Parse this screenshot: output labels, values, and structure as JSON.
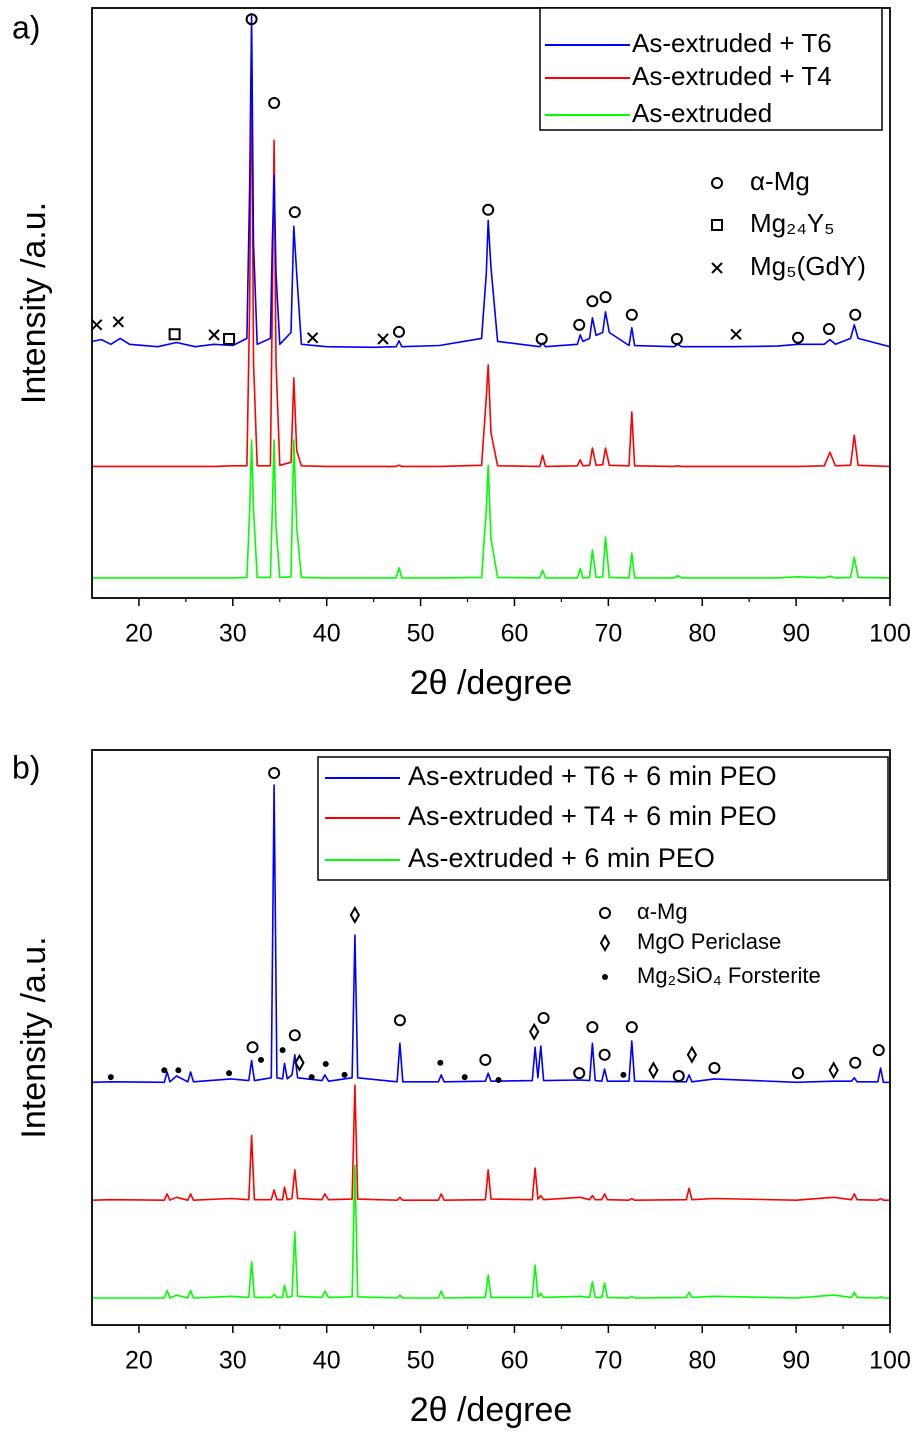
{
  "chart_data": [
    {
      "type": "line",
      "panel_label": "a)",
      "x_label": "2θ /degree",
      "y_label": "Intensity /a.u.",
      "xlim": [
        15,
        100
      ],
      "xticks": [
        20,
        30,
        40,
        50,
        60,
        70,
        80,
        90,
        100
      ],
      "ylim": [
        0,
        100
      ],
      "x": [
        15,
        16,
        17,
        18,
        19,
        22,
        24,
        26,
        28,
        30,
        31.5,
        31.8,
        32,
        32.2,
        32.6,
        34,
        34.2,
        34.4,
        34.6,
        35,
        36.2,
        36.5,
        36.8,
        37.3,
        40,
        45,
        47.4,
        47.7,
        48,
        52,
        56.5,
        57.0,
        57.2,
        57.5,
        58.2,
        62.7,
        63,
        63.3,
        66.7,
        67,
        67.3,
        68,
        68.3,
        68.7,
        69.4,
        69.7,
        70.1,
        72.2,
        72.5,
        72.8,
        77,
        77.4,
        77.8,
        83,
        88,
        90.2,
        93,
        93.6,
        94.2,
        95.8,
        96.2,
        96.6,
        100
      ],
      "series": [
        {
          "name": "As-extruded + T6",
          "color": "#0000ff",
          "values": [
            43.5,
            43.8,
            43,
            44,
            43,
            42.6,
            43.3,
            42.6,
            43,
            42.8,
            44,
            70,
            99,
            60,
            43,
            44,
            60,
            71.7,
            55,
            43,
            45,
            63,
            55,
            43,
            42.6,
            42.5,
            42.6,
            43.6,
            42.6,
            42.8,
            44,
            55,
            64,
            56,
            43.5,
            42.6,
            43.2,
            42.6,
            43,
            44.6,
            43.5,
            44,
            47.5,
            44.5,
            45,
            48.5,
            45,
            42.8,
            45.8,
            42.8,
            42.6,
            43,
            42.6,
            42.6,
            42.7,
            43,
            43,
            43.8,
            43,
            44,
            46.3,
            44,
            42.6
          ]
        },
        {
          "name": "As-extruded + T4",
          "color": "#ff0000",
          "values": [
            22.3,
            22.3,
            22.3,
            22.3,
            22.3,
            22.3,
            22.3,
            22.3,
            22.3,
            22.4,
            22.4,
            50,
            95,
            40,
            22.4,
            22.4,
            50,
            77.6,
            40,
            22.5,
            23,
            37.3,
            25,
            22.4,
            22.3,
            22.3,
            22.3,
            22.5,
            22.3,
            22.3,
            22.5,
            34,
            39.5,
            28,
            22.4,
            22.3,
            24.2,
            22.3,
            22.4,
            23.4,
            22.4,
            22.5,
            25.4,
            22.5,
            22.6,
            25.4,
            22.5,
            22.4,
            31.5,
            22.4,
            22.3,
            22.4,
            22.3,
            22.3,
            22.3,
            22.3,
            22.4,
            24.7,
            22.4,
            22.5,
            27.6,
            22.5,
            22.3
          ]
        },
        {
          "name": "As-extruded",
          "color": "#00ff00",
          "values": [
            3.4,
            3.4,
            3.4,
            3.4,
            3.4,
            3.4,
            3.4,
            3.4,
            3.4,
            3.4,
            3.5,
            15,
            26.8,
            15,
            3.5,
            3.5,
            15,
            26.8,
            12,
            3.5,
            3.6,
            26.8,
            12,
            3.5,
            3.4,
            3.4,
            3.4,
            5.1,
            3.4,
            3.4,
            3.5,
            15,
            22.5,
            10,
            3.5,
            3.4,
            4.7,
            3.4,
            3.4,
            5,
            3.4,
            3.5,
            8.1,
            3.5,
            3.6,
            10.3,
            3.5,
            3.4,
            7.6,
            3.4,
            3.4,
            3.8,
            3.4,
            3.4,
            3.4,
            3.6,
            3.4,
            3.7,
            3.4,
            3.5,
            6.9,
            3.5,
            3.4
          ]
        }
      ],
      "phase_legend": [
        {
          "symbol": "circle",
          "label": "α-Mg"
        },
        {
          "symbol": "square",
          "label": "Mg₂₄Y₅"
        },
        {
          "symbol": "x",
          "label": "Mg₅(GdY)"
        }
      ],
      "markers": [
        {
          "symbol": "circle",
          "x": 32,
          "y": 98.1
        },
        {
          "symbol": "circle",
          "x": 34.4,
          "y": 83.9
        },
        {
          "symbol": "circle",
          "x": 36.6,
          "y": 65.4
        },
        {
          "symbol": "circle",
          "x": 47.7,
          "y": 45.1
        },
        {
          "symbol": "circle",
          "x": 57.2,
          "y": 65.8
        },
        {
          "symbol": "circle",
          "x": 62.9,
          "y": 43.9
        },
        {
          "symbol": "circle",
          "x": 66.9,
          "y": 46.3
        },
        {
          "symbol": "circle",
          "x": 68.3,
          "y": 50.3
        },
        {
          "symbol": "circle",
          "x": 69.7,
          "y": 51
        },
        {
          "symbol": "circle",
          "x": 72.5,
          "y": 48
        },
        {
          "symbol": "circle",
          "x": 77.3,
          "y": 43.9
        },
        {
          "symbol": "circle",
          "x": 90.2,
          "y": 44.1
        },
        {
          "symbol": "circle",
          "x": 93.5,
          "y": 45.6
        },
        {
          "symbol": "circle",
          "x": 96.3,
          "y": 48
        },
        {
          "symbol": "square",
          "x": 23.8,
          "y": 44.7
        },
        {
          "symbol": "square",
          "x": 29.6,
          "y": 43.9
        },
        {
          "symbol": "x",
          "x": 15.5,
          "y": 46.3
        },
        {
          "symbol": "x",
          "x": 17.8,
          "y": 46.8
        },
        {
          "symbol": "x",
          "x": 28,
          "y": 44.6
        },
        {
          "symbol": "x",
          "x": 38.5,
          "y": 44.1
        },
        {
          "symbol": "x",
          "x": 46,
          "y": 43.9
        },
        {
          "symbol": "x",
          "x": 83.6,
          "y": 44.7
        }
      ]
    },
    {
      "type": "line",
      "panel_label": "b)",
      "x_label": "2θ /degree",
      "y_label": "Intensity /a.u.",
      "xlim": [
        15,
        100
      ],
      "xticks": [
        20,
        30,
        40,
        50,
        60,
        70,
        80,
        90,
        100
      ],
      "ylim": [
        0,
        100
      ],
      "x": [
        15,
        17,
        22.7,
        23,
        23.3,
        24,
        25.2,
        25.5,
        25.8,
        29.8,
        31.7,
        32,
        32.3,
        34.1,
        34.4,
        34.7,
        35.3,
        35.5,
        35.8,
        36.3,
        36.6,
        36.9,
        39.5,
        39.8,
        40.2,
        42.7,
        43,
        43.3,
        47.5,
        47.8,
        48.1,
        51.9,
        52.2,
        52.5,
        56.9,
        57.2,
        57.5,
        61.9,
        62.2,
        62.5,
        62.8,
        63.1,
        67,
        68,
        68.3,
        68.6,
        69.3,
        69.6,
        69.9,
        72.2,
        72.5,
        72.8,
        78.3,
        78.6,
        78.9,
        81.3,
        90,
        94,
        95.9,
        96.2,
        96.5,
        98.7,
        99,
        99.3,
        100
      ],
      "series": [
        {
          "name": "As-extruded + T6 + 6 min PEO",
          "color": "#0000ff",
          "values": [
            42.2,
            42.3,
            42.2,
            44,
            42.3,
            43.3,
            42.3,
            44,
            42.3,
            42.8,
            42.5,
            46,
            42.5,
            43,
            93.9,
            43,
            42.8,
            45.5,
            42.8,
            43.5,
            47,
            43,
            42.5,
            43.5,
            42.4,
            43,
            67.8,
            43,
            42.3,
            49,
            42.3,
            42.3,
            43.5,
            42.3,
            42.4,
            43.8,
            42.4,
            42.5,
            48.3,
            43,
            48.5,
            42.5,
            42.6,
            42.5,
            49,
            42.5,
            42.4,
            44.5,
            42.4,
            42.4,
            49.4,
            42.4,
            42.3,
            43.5,
            42.3,
            42.8,
            42.2,
            42.4,
            42.4,
            43,
            42.3,
            42.3,
            44.7,
            42.2,
            42.2
          ]
        },
        {
          "name": "As-extruded + T4 + 6 min PEO",
          "color": "#ff0000",
          "values": [
            21.7,
            21.8,
            21.7,
            22.8,
            21.7,
            22.2,
            21.7,
            22.8,
            21.7,
            22,
            21.8,
            33,
            21.8,
            21.8,
            23.5,
            21.8,
            21.8,
            24,
            21.8,
            22,
            27,
            22,
            21.8,
            22.8,
            21.8,
            21.9,
            41.7,
            21.9,
            21.7,
            22.2,
            21.7,
            21.7,
            22.8,
            21.7,
            21.8,
            27,
            21.9,
            21.8,
            27.3,
            21.9,
            22.5,
            21.8,
            22.2,
            21.8,
            22.5,
            21.8,
            21.8,
            22.8,
            21.8,
            21.7,
            22,
            21.7,
            21.8,
            23.8,
            21.8,
            22,
            21.7,
            22.2,
            21.8,
            22.8,
            21.8,
            21.7,
            22,
            21.7,
            21.7
          ]
        },
        {
          "name": "As-extruded + 6 min PEO",
          "color": "#00ff00",
          "values": [
            4.7,
            4.7,
            4.7,
            6,
            4.7,
            5.2,
            4.7,
            6,
            4.7,
            5,
            4.8,
            11,
            4.8,
            4.8,
            5.3,
            4.8,
            4.8,
            6.9,
            4.8,
            5,
            16.2,
            5,
            4.8,
            5.9,
            4.8,
            4.9,
            27.8,
            4.9,
            4.7,
            5.2,
            4.7,
            4.7,
            5.9,
            4.7,
            4.8,
            8.7,
            4.8,
            4.8,
            10.4,
            4.9,
            5.5,
            4.8,
            5,
            4.8,
            7.5,
            4.8,
            4.8,
            7.3,
            4.8,
            4.7,
            5,
            4.7,
            4.8,
            5.7,
            4.8,
            5,
            4.7,
            5.2,
            4.8,
            5.7,
            4.8,
            4.7,
            4.9,
            4.7,
            4.7
          ]
        }
      ],
      "phase_legend": [
        {
          "symbol": "circle",
          "label": "α-Mg"
        },
        {
          "symbol": "diamond",
          "label": "MgO Periclase"
        },
        {
          "symbol": "star",
          "label": "Mg₂SiO₄ Forsterite"
        }
      ],
      "markers": [
        {
          "symbol": "circle",
          "x": 32.1,
          "y": 48.3
        },
        {
          "symbol": "circle",
          "x": 34.4,
          "y": 96
        },
        {
          "symbol": "circle",
          "x": 36.6,
          "y": 50.4
        },
        {
          "symbol": "circle",
          "x": 47.8,
          "y": 53
        },
        {
          "symbol": "circle",
          "x": 56.9,
          "y": 46.1
        },
        {
          "symbol": "circle",
          "x": 63.1,
          "y": 53.4
        },
        {
          "symbol": "circle",
          "x": 66.9,
          "y": 43.8
        },
        {
          "symbol": "circle",
          "x": 68.3,
          "y": 51.8
        },
        {
          "symbol": "circle",
          "x": 69.6,
          "y": 47
        },
        {
          "symbol": "circle",
          "x": 72.5,
          "y": 51.8
        },
        {
          "symbol": "circle",
          "x": 77.5,
          "y": 43.3
        },
        {
          "symbol": "circle",
          "x": 81.3,
          "y": 44.7
        },
        {
          "symbol": "circle",
          "x": 90.2,
          "y": 43.8
        },
        {
          "symbol": "circle",
          "x": 96.3,
          "y": 45.6
        },
        {
          "symbol": "circle",
          "x": 98.8,
          "y": 47.8
        },
        {
          "symbol": "diamond",
          "x": 43,
          "y": 71.3
        },
        {
          "symbol": "diamond",
          "x": 37.1,
          "y": 45.6
        },
        {
          "symbol": "diamond",
          "x": 62.1,
          "y": 51
        },
        {
          "symbol": "diamond",
          "x": 74.8,
          "y": 44.3
        },
        {
          "symbol": "diamond",
          "x": 78.9,
          "y": 47
        },
        {
          "symbol": "diamond",
          "x": 94,
          "y": 44.3
        },
        {
          "symbol": "star",
          "x": 17,
          "y": 43.1
        },
        {
          "symbol": "star",
          "x": 22.7,
          "y": 44.3
        },
        {
          "symbol": "star",
          "x": 24.2,
          "y": 44.3
        },
        {
          "symbol": "star",
          "x": 29.6,
          "y": 43.8
        },
        {
          "symbol": "star",
          "x": 33,
          "y": 46.1
        },
        {
          "symbol": "star",
          "x": 35.3,
          "y": 47.8
        },
        {
          "symbol": "star",
          "x": 38.4,
          "y": 43.1
        },
        {
          "symbol": "star",
          "x": 39.9,
          "y": 45.4
        },
        {
          "symbol": "star",
          "x": 41.9,
          "y": 43.5
        },
        {
          "symbol": "star",
          "x": 52.1,
          "y": 45.6
        },
        {
          "symbol": "star",
          "x": 54.7,
          "y": 43.1
        },
        {
          "symbol": "star",
          "x": 58.3,
          "y": 42.6
        },
        {
          "symbol": "star",
          "x": 71.6,
          "y": 43.5
        }
      ]
    }
  ]
}
